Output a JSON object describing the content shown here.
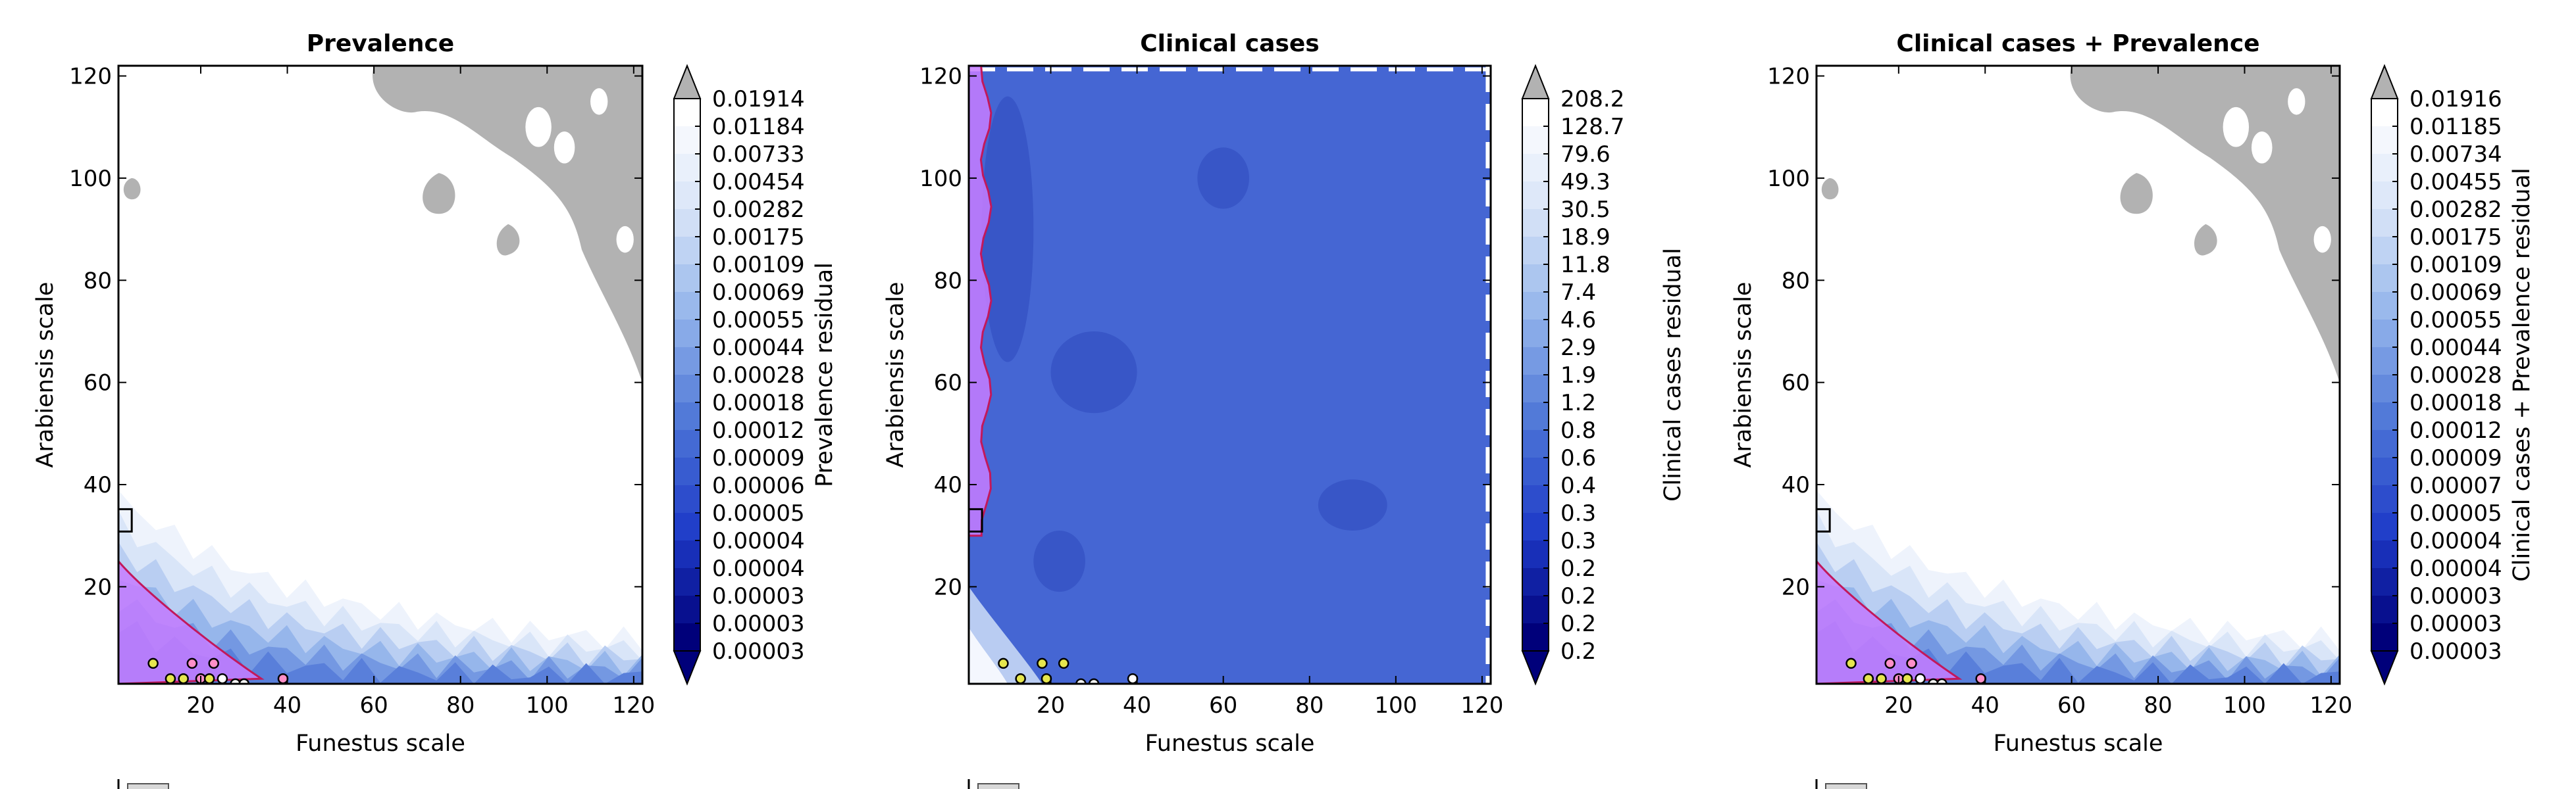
{
  "colors": {
    "background": "#ffffff",
    "saturated_above": "#b2b2b2",
    "saturated_below": "#00007a",
    "scale_high": "#ffffff",
    "scale_low": "#00007a",
    "region_fill": "#c77cff",
    "region_edge": "#c2185b",
    "marker_yellow": "#e6e64d",
    "marker_pink": "#ff8fc8",
    "marker_white": "#ffffff"
  },
  "chart_data": [
    {
      "type": "heatmap",
      "title": "Prevalence",
      "xlabel": "Funestus scale",
      "ylabel": "Arabiensis scale",
      "xlim": [
        1,
        122
      ],
      "ylim": [
        1,
        122
      ],
      "xticks": [
        20,
        40,
        60,
        80,
        100,
        120
      ],
      "yticks": [
        20,
        40,
        60,
        80,
        100,
        120
      ],
      "colorbar_label": "Prevalence residual",
      "colorbar_ticks": [
        "0.01914",
        "0.01184",
        "0.00733",
        "0.00454",
        "0.00282",
        "0.00175",
        "0.00109",
        "0.00069",
        "0.00055",
        "0.00044",
        "0.00028",
        "0.00018",
        "0.00012",
        "0.00009",
        "0.00006",
        "0.00005",
        "0.00004",
        "0.00004",
        "0.00003",
        "0.00003",
        "0.00003"
      ],
      "background_level": "light",
      "saturated_region": "upper-right",
      "highlight_region": "lower-left",
      "reference_point": [
        3,
        33
      ],
      "markers": [
        {
          "x": 9,
          "y": 5,
          "color": "yellow"
        },
        {
          "x": 13,
          "y": 2,
          "color": "yellow"
        },
        {
          "x": 16,
          "y": 2,
          "color": "yellow"
        },
        {
          "x": 18,
          "y": 5,
          "color": "pink"
        },
        {
          "x": 20,
          "y": 2,
          "color": "pink"
        },
        {
          "x": 22,
          "y": 2,
          "color": "yellow"
        },
        {
          "x": 23,
          "y": 5,
          "color": "pink"
        },
        {
          "x": 25,
          "y": 2,
          "color": "white"
        },
        {
          "x": 28,
          "y": 1,
          "color": "white"
        },
        {
          "x": 30,
          "y": 1,
          "color": "white"
        },
        {
          "x": 39,
          "y": 2,
          "color": "pink"
        }
      ]
    },
    {
      "type": "heatmap",
      "title": "Clinical cases",
      "xlabel": "Funestus scale",
      "ylabel": "Arabiensis scale",
      "xlim": [
        1,
        122
      ],
      "ylim": [
        1,
        122
      ],
      "xticks": [
        20,
        40,
        60,
        80,
        100,
        120
      ],
      "yticks": [
        20,
        40,
        60,
        80,
        100,
        120
      ],
      "colorbar_label": "Clinical cases residual",
      "colorbar_ticks": [
        "208.2",
        "128.7",
        "79.6",
        "49.3",
        "30.5",
        "18.9",
        "11.8",
        "7.4",
        "4.6",
        "2.9",
        "1.9",
        "1.2",
        "0.8",
        "0.6",
        "0.4",
        "0.3",
        "0.3",
        "0.2",
        "0.2",
        "0.2",
        "0.2"
      ],
      "background_level": "dark",
      "saturated_region": "none",
      "highlight_region": "left-strip",
      "reference_point": [
        3,
        33
      ],
      "markers": [
        {
          "x": 9,
          "y": 5,
          "color": "yellow"
        },
        {
          "x": 13,
          "y": 2,
          "color": "yellow"
        },
        {
          "x": 18,
          "y": 5,
          "color": "yellow"
        },
        {
          "x": 19,
          "y": 2,
          "color": "yellow"
        },
        {
          "x": 23,
          "y": 5,
          "color": "yellow"
        },
        {
          "x": 27,
          "y": 1,
          "color": "white"
        },
        {
          "x": 30,
          "y": 1,
          "color": "white"
        },
        {
          "x": 39,
          "y": 2,
          "color": "white"
        }
      ]
    },
    {
      "type": "heatmap",
      "title": "Clinical cases + Prevalence",
      "xlabel": "Funestus scale",
      "ylabel": "Arabiensis scale",
      "xlim": [
        1,
        122
      ],
      "ylim": [
        1,
        122
      ],
      "xticks": [
        20,
        40,
        60,
        80,
        100,
        120
      ],
      "yticks": [
        20,
        40,
        60,
        80,
        100,
        120
      ],
      "colorbar_label": "Clinical cases + Prevalence residual",
      "colorbar_ticks": [
        "0.01916",
        "0.01185",
        "0.00734",
        "0.00455",
        "0.00282",
        "0.00175",
        "0.00109",
        "0.00069",
        "0.00055",
        "0.00044",
        "0.00028",
        "0.00018",
        "0.00012",
        "0.00009",
        "0.00007",
        "0.00005",
        "0.00004",
        "0.00004",
        "0.00003",
        "0.00003",
        "0.00003"
      ],
      "background_level": "light",
      "saturated_region": "upper-right",
      "highlight_region": "lower-left",
      "reference_point": [
        3,
        33
      ],
      "markers": [
        {
          "x": 9,
          "y": 5,
          "color": "yellow"
        },
        {
          "x": 13,
          "y": 2,
          "color": "yellow"
        },
        {
          "x": 16,
          "y": 2,
          "color": "yellow"
        },
        {
          "x": 18,
          "y": 5,
          "color": "pink"
        },
        {
          "x": 20,
          "y": 2,
          "color": "pink"
        },
        {
          "x": 22,
          "y": 2,
          "color": "yellow"
        },
        {
          "x": 23,
          "y": 5,
          "color": "pink"
        },
        {
          "x": 25,
          "y": 2,
          "color": "white"
        },
        {
          "x": 28,
          "y": 1,
          "color": "white"
        },
        {
          "x": 30,
          "y": 1,
          "color": "white"
        },
        {
          "x": 39,
          "y": 2,
          "color": "pink"
        }
      ]
    }
  ]
}
